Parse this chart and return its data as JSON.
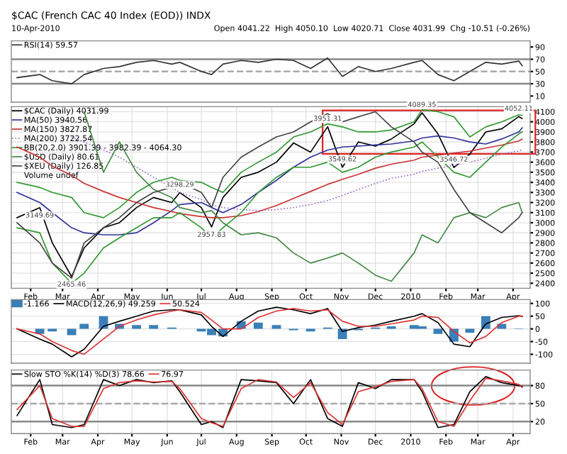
{
  "chart_data": [
    {
      "type": "line",
      "title": "$CAC (French CAC 40 Index (EOD)) INDX",
      "subtitle": "10-Apr-2010",
      "annotations": [
        "Open 4041.22  High 4050.10  Low 4020.71  Close 4031.99  Chg -10.51 (-0.26%)"
      ],
      "x": [
        "2009-01-20",
        "2009-02-09",
        "2009-02-20",
        "2009-03-09",
        "2009-03-20",
        "2009-04-06",
        "2009-04-20",
        "2009-05-05",
        "2009-05-20",
        "2009-06-05",
        "2009-06-12",
        "2009-07-01",
        "2009-07-10",
        "2009-07-20",
        "2009-08-05",
        "2009-08-20",
        "2009-09-05",
        "2009-09-20",
        "2009-10-05",
        "2009-10-20",
        "2009-11-02",
        "2009-11-16",
        "2009-12-01",
        "2009-12-15",
        "2010-01-04",
        "2010-01-11",
        "2010-01-25",
        "2010-02-08",
        "2010-02-22",
        "2010-03-08",
        "2010-03-22",
        "2010-04-06",
        "2010-04-09"
      ],
      "series": [
        {
          "name": "RSI(14) 59.57",
          "color": "#333333",
          "values": [
            40,
            45,
            35,
            30,
            45,
            55,
            58,
            65,
            68,
            62,
            65,
            50,
            45,
            62,
            68,
            65,
            70,
            68,
            55,
            72,
            42,
            58,
            50,
            55,
            65,
            68,
            45,
            35,
            50,
            65,
            62,
            67,
            59.57
          ]
        }
      ],
      "xlim": [
        "2009-01-15",
        "2010-04-16"
      ],
      "ylim": [
        0,
        100
      ],
      "yticks": [
        10,
        30,
        50,
        70,
        90
      ],
      "ref_lines": [
        {
          "axis": "y",
          "value": 70,
          "color": "#888888"
        },
        {
          "axis": "y",
          "value": 50,
          "color": "#aaaaaa",
          "line_style": "dashed"
        },
        {
          "axis": "y",
          "value": 30,
          "color": "#888888"
        }
      ],
      "grid": "x",
      "legend": "top left",
      "tick_labels": "y"
    },
    {
      "type": "line",
      "annotations": [
        {
          "text": "3149.69",
          "x": "2009-02-09",
          "y": 3149.69
        },
        {
          "text": "2465.46",
          "x": "2009-03-09",
          "y": 2465.46
        },
        {
          "text": "3298.29",
          "x": "2009-06-12",
          "y": 3298.29
        },
        {
          "text": "2957.83",
          "x": "2009-07-10",
          "y": 2957.83
        },
        {
          "text": "3951.31",
          "x": "2009-10-20",
          "y": 3951.31
        },
        {
          "text": "3549.62",
          "x": "2009-11-02",
          "y": 3549.62
        },
        {
          "text": "4089.35",
          "x": "2010-01-11",
          "y": 4089.35
        },
        {
          "text": "3546.72",
          "x": "2010-02-08",
          "y": 3546.72
        },
        {
          "text": "4052.11",
          "x": "2010-04-06",
          "y": 4052.11
        },
        "Volume undef"
      ],
      "x": [
        "2009-01-20",
        "2009-02-09",
        "2009-02-20",
        "2009-03-09",
        "2009-03-20",
        "2009-04-06",
        "2009-04-20",
        "2009-05-05",
        "2009-05-20",
        "2009-06-05",
        "2009-06-12",
        "2009-07-01",
        "2009-07-10",
        "2009-07-20",
        "2009-08-05",
        "2009-08-20",
        "2009-09-05",
        "2009-09-20",
        "2009-10-05",
        "2009-10-20",
        "2009-11-02",
        "2009-11-16",
        "2009-12-01",
        "2009-12-15",
        "2010-01-04",
        "2010-01-11",
        "2010-01-25",
        "2010-02-08",
        "2010-02-22",
        "2010-03-08",
        "2010-03-22",
        "2010-04-06",
        "2010-04-09"
      ],
      "series": [
        {
          "name": "$CAC (Daily) 4031.99",
          "color": "#000000",
          "values": [
            3050,
            3149.69,
            2800,
            2465.46,
            2750,
            2950,
            3000,
            3150,
            3250,
            3200,
            3298.29,
            3150,
            2957.83,
            3250,
            3450,
            3500,
            3600,
            3790,
            3700,
            3951.31,
            3549.62,
            3800,
            3760,
            3830,
            3980,
            4089.35,
            3880,
            3546.72,
            3680,
            3900,
            3930,
            4052.11,
            4031.99
          ]
        },
        {
          "name": "MA(50) 3940.56",
          "color": "#333399",
          "values": [
            3300,
            3200,
            3100,
            2950,
            2900,
            2880,
            2880,
            2900,
            3000,
            3120,
            3180,
            3200,
            3150,
            3100,
            3180,
            3300,
            3420,
            3550,
            3650,
            3720,
            3750,
            3760,
            3770,
            3780,
            3810,
            3840,
            3860,
            3840,
            3800,
            3780,
            3830,
            3900,
            3940.56
          ]
        },
        {
          "name": "MA(150) 3827.87",
          "color": "#cc3333",
          "values": [
            3750,
            3650,
            3560,
            3470,
            3390,
            3310,
            3250,
            3200,
            3150,
            3110,
            3090,
            3060,
            3050,
            3050,
            3070,
            3110,
            3170,
            3240,
            3310,
            3380,
            3430,
            3480,
            3540,
            3580,
            3620,
            3650,
            3670,
            3690,
            3710,
            3740,
            3770,
            3810,
            3827.87
          ]
        },
        {
          "name": "MA(200) 3722.54",
          "color": "#9966cc",
          "line_style": "dotted",
          "values": [
            null,
            null,
            null,
            3850,
            3800,
            3720,
            3650,
            3550,
            3450,
            3350,
            3300,
            3230,
            3180,
            3150,
            3130,
            3120,
            3130,
            3150,
            3180,
            3220,
            3270,
            3330,
            3390,
            3440,
            3480,
            3510,
            3540,
            3570,
            3600,
            3640,
            3680,
            3710,
            3722.54
          ]
        },
        {
          "name": "BB(20,2.0) 3901.39 - 3982.39 - 4064.30",
          "color": "#339933",
          "values": [
            3400,
            3350,
            3300,
            3250,
            3100,
            3050,
            3150,
            3300,
            3400,
            3450,
            3420,
            3400,
            3350,
            3300,
            3500,
            3600,
            3700,
            3850,
            3900,
            3980,
            3950,
            3900,
            3900,
            3920,
            4000,
            4120,
            4100,
            4050,
            3850,
            3950,
            4000,
            4070,
            4064.3
          ]
        },
        {
          "color": "#339933",
          "values": [
            2950,
            2900,
            2600,
            2400,
            2500,
            2750,
            2850,
            2950,
            3050,
            3050,
            3100,
            2950,
            2850,
            2950,
            3100,
            3300,
            3450,
            3550,
            3550,
            3600,
            3500,
            3550,
            3650,
            3700,
            3750,
            3800,
            3650,
            3500,
            3450,
            3600,
            3750,
            3880,
            3901.39
          ]
        },
        {
          "name": "$USD (Daily) 80.61",
          "color": "#448844",
          "values": [
            null,
            null,
            null,
            null,
            4100,
            3500,
            3800,
            3500,
            3330,
            3250,
            3150,
            3100,
            3120,
            3000,
            2880,
            2900,
            2850,
            2700,
            2600,
            2650,
            2700,
            2600,
            2480,
            2420,
            2700,
            2880,
            2800,
            3050,
            3100,
            3050,
            3150,
            3200,
            3100
          ]
        },
        {
          "name": "$XEU (Daily) 126.85",
          "color": "#444444",
          "values": [
            3000,
            2800,
            2600,
            2450,
            2800,
            2950,
            3050,
            3200,
            3300,
            3350,
            3400,
            3300,
            3150,
            3450,
            3650,
            3750,
            3850,
            3900,
            4000,
            4080,
            4000,
            4050,
            4100,
            3950,
            3800,
            3700,
            3600,
            3330,
            3100,
            3000,
            2900,
            3050,
            3100
          ]
        }
      ],
      "xlim": [
        "2009-01-15",
        "2010-04-16"
      ],
      "ylim": [
        2350,
        4150
      ],
      "yticks": [
        2400,
        2500,
        2600,
        2700,
        2800,
        2900,
        3000,
        3100,
        3200,
        3300,
        3400,
        3500,
        3600,
        3700,
        3800,
        3900,
        4000,
        4100
      ],
      "xticks": [
        {
          "value": "2009-02-01",
          "label": "Feb"
        },
        {
          "value": "2009-03-01",
          "label": "Mar"
        },
        {
          "value": "2009-04-01",
          "label": "Apr"
        },
        {
          "value": "2009-05-01",
          "label": "May"
        },
        {
          "value": "2009-06-01",
          "label": "Jun"
        },
        {
          "value": "2009-07-01",
          "label": "Jul"
        },
        {
          "value": "2009-08-01",
          "label": "Aug"
        },
        {
          "value": "2009-09-01",
          "label": "Sep"
        },
        {
          "value": "2009-10-01",
          "label": "Oct"
        },
        {
          "value": "2009-11-01",
          "label": "Nov"
        },
        {
          "value": "2009-12-01",
          "label": "Dec"
        },
        {
          "value": "2010-01-01",
          "label": "2010"
        },
        {
          "value": "2010-02-01",
          "label": "Feb"
        },
        {
          "value": "2010-03-01",
          "label": "Mar"
        },
        {
          "value": "2010-04-01",
          "label": "Apr"
        }
      ],
      "grid": true,
      "legend": "top left"
    },
    {
      "type": "line",
      "x": [
        "2009-01-20",
        "2009-02-09",
        "2009-02-20",
        "2009-03-09",
        "2009-03-20",
        "2009-04-06",
        "2009-04-20",
        "2009-05-05",
        "2009-05-20",
        "2009-06-05",
        "2009-06-12",
        "2009-07-01",
        "2009-07-10",
        "2009-07-20",
        "2009-08-05",
        "2009-08-20",
        "2009-09-05",
        "2009-09-20",
        "2009-10-05",
        "2009-10-20",
        "2009-11-02",
        "2009-11-16",
        "2009-12-01",
        "2009-12-15",
        "2010-01-04",
        "2010-01-11",
        "2010-01-25",
        "2010-02-08",
        "2010-02-22",
        "2010-03-08",
        "2010-03-22",
        "2010-04-06",
        "2010-04-09"
      ],
      "series": [
        {
          "name": "-1.166",
          "type": "bar",
          "color": "#3a7fb8",
          "values": [
            0,
            -20,
            -10,
            -25,
            20,
            50,
            20,
            15,
            15,
            5,
            0,
            -10,
            -25,
            -30,
            30,
            25,
            15,
            -5,
            -10,
            5,
            -40,
            -5,
            5,
            10,
            15,
            10,
            -20,
            -50,
            -15,
            50,
            20,
            2,
            null
          ]
        },
        {
          "name": "MACD(12,26,9) 49.259",
          "color": "#000000",
          "values": [
            0,
            -40,
            -60,
            -110,
            -80,
            10,
            30,
            50,
            70,
            75,
            75,
            55,
            10,
            -30,
            30,
            70,
            85,
            75,
            60,
            80,
            -10,
            5,
            15,
            30,
            50,
            60,
            25,
            -60,
            -70,
            20,
            45,
            52,
            49.259
          ]
        },
        {
          "name": "50.524",
          "color": "#dd3333",
          "values": [
            0,
            -20,
            -50,
            -85,
            -100,
            -40,
            10,
            35,
            55,
            70,
            75,
            65,
            35,
            0,
            0,
            45,
            70,
            80,
            70,
            75,
            30,
            10,
            10,
            20,
            35,
            50,
            45,
            -10,
            -55,
            -30,
            25,
            50,
            50.524
          ]
        }
      ],
      "xlim": [
        "2009-01-15",
        "2010-04-16"
      ],
      "ylim": [
        -135,
        115
      ],
      "yticks": [
        -100,
        -50,
        0,
        50,
        100
      ],
      "grid": true,
      "legend": "top left",
      "tick_labels": "y"
    },
    {
      "type": "line",
      "x": [
        "2009-01-20",
        "2009-02-09",
        "2009-02-20",
        "2009-03-09",
        "2009-03-20",
        "2009-04-06",
        "2009-04-20",
        "2009-05-05",
        "2009-05-20",
        "2009-06-05",
        "2009-06-12",
        "2009-07-01",
        "2009-07-10",
        "2009-07-20",
        "2009-08-05",
        "2009-08-20",
        "2009-09-05",
        "2009-09-20",
        "2009-10-05",
        "2009-10-20",
        "2009-11-02",
        "2009-11-16",
        "2009-12-01",
        "2009-12-15",
        "2010-01-04",
        "2010-01-11",
        "2010-01-25",
        "2010-02-08",
        "2010-02-22",
        "2010-03-08",
        "2010-03-22",
        "2010-04-06",
        "2010-04-09"
      ],
      "series": [
        {
          "name": "Slow STO %K(14) %D(3) 78.66",
          "color": "#000000",
          "values": [
            30,
            90,
            15,
            10,
            15,
            90,
            80,
            90,
            85,
            88,
            70,
            15,
            20,
            10,
            90,
            88,
            85,
            50,
            90,
            25,
            12,
            85,
            75,
            90,
            90,
            70,
            10,
            15,
            70,
            95,
            85,
            80,
            78.66
          ]
        },
        {
          "name": "76.97",
          "color": "#dd3333",
          "values": [
            40,
            80,
            25,
            12,
            12,
            75,
            85,
            88,
            86,
            87,
            75,
            25,
            18,
            12,
            75,
            90,
            86,
            60,
            85,
            35,
            15,
            70,
            78,
            87,
            90,
            75,
            20,
            12,
            55,
            92,
            88,
            82,
            76.97
          ]
        }
      ],
      "xlim": [
        "2009-01-15",
        "2010-04-16"
      ],
      "ylim": [
        0,
        106
      ],
      "yticks": [
        20,
        50,
        80
      ],
      "xticks": [
        {
          "value": "2009-02-01",
          "label": "Feb"
        },
        {
          "value": "2009-03-01",
          "label": "Mar"
        },
        {
          "value": "2009-04-01",
          "label": "Apr"
        },
        {
          "value": "2009-05-01",
          "label": "May"
        },
        {
          "value": "2009-06-01",
          "label": "Jun"
        },
        {
          "value": "2009-07-01",
          "label": "Jul"
        },
        {
          "value": "2009-08-01",
          "label": "Aug"
        },
        {
          "value": "2009-09-01",
          "label": "Sep"
        },
        {
          "value": "2009-10-01",
          "label": "Oct"
        },
        {
          "value": "2009-11-01",
          "label": "Nov"
        },
        {
          "value": "2009-12-01",
          "label": "Dec"
        },
        {
          "value": "2010-01-01",
          "label": "2010"
        },
        {
          "value": "2010-02-01",
          "label": "Feb"
        },
        {
          "value": "2010-03-01",
          "label": "Mar"
        },
        {
          "value": "2010-04-01",
          "label": "Apr"
        }
      ],
      "ref_lines": [
        {
          "axis": "y",
          "value": 80,
          "color": "#888888"
        },
        {
          "axis": "y",
          "value": 50,
          "color": "#aaaaaa",
          "line_style": "dashed"
        },
        {
          "axis": "y",
          "value": 20,
          "color": "#888888"
        }
      ],
      "grid": true,
      "legend": "top left"
    }
  ]
}
